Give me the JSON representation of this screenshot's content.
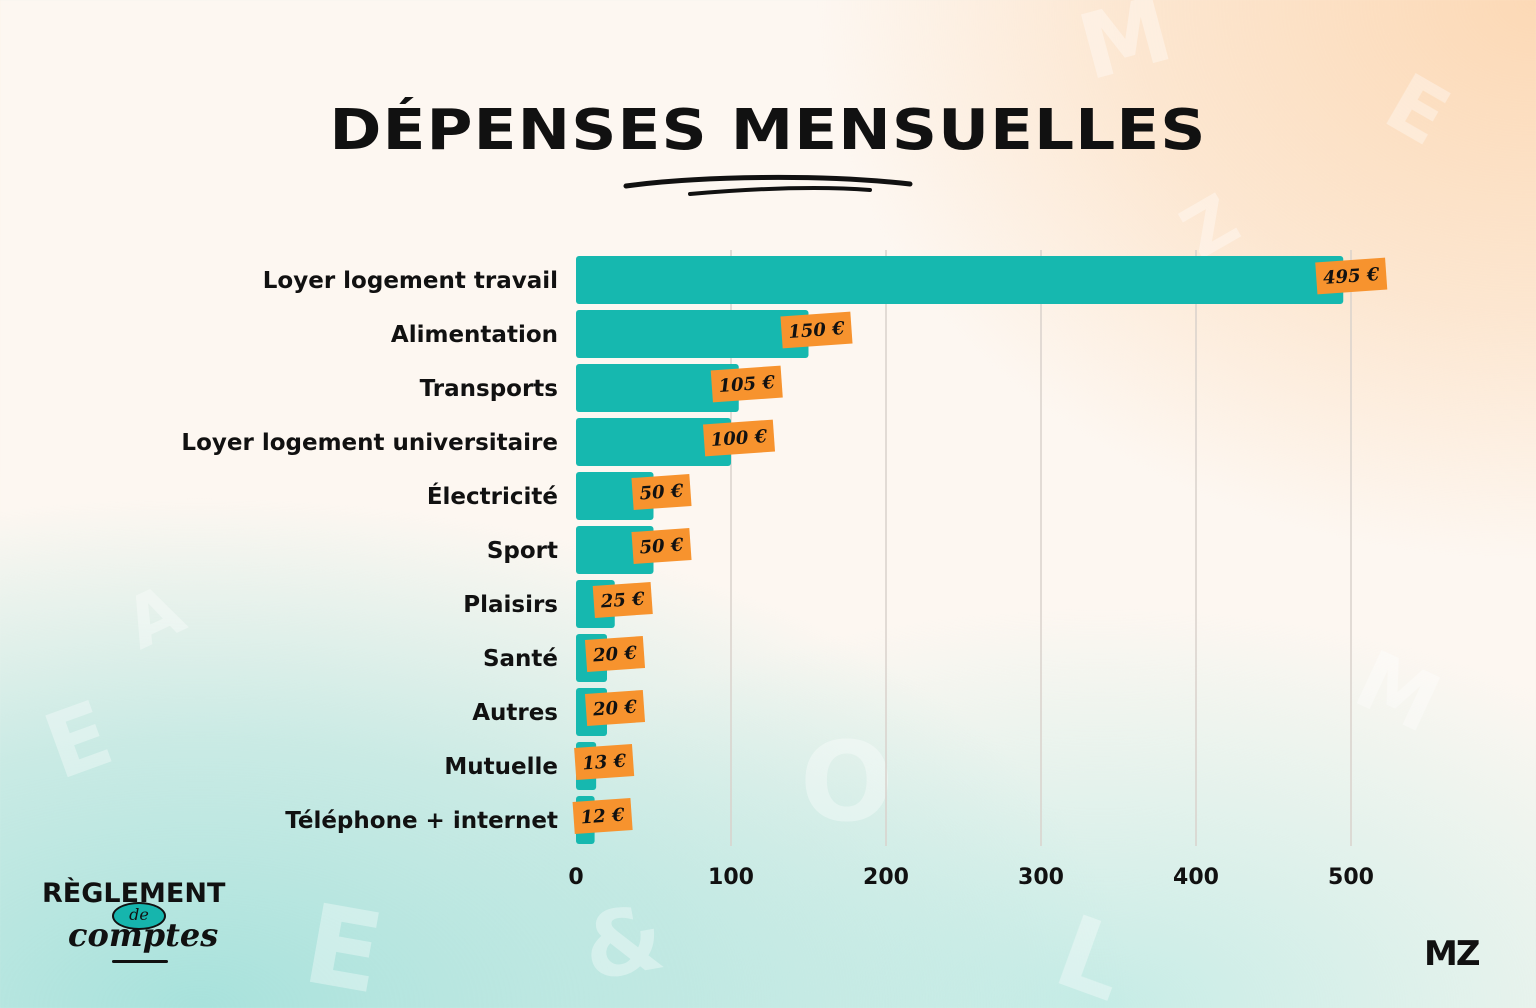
{
  "title": "DÉPENSES MENSUELLES",
  "logo_left": {
    "line1": "RÈGLEMENT",
    "line2": "de",
    "line3": "comptes"
  },
  "logo_right": "MZ",
  "colors": {
    "bar": "#16b8af",
    "tag": "#f7932e",
    "grid": "#d9d2cc",
    "text": "#111111"
  },
  "chart_data": {
    "type": "bar",
    "orientation": "horizontal",
    "categories": [
      "Loyer logement travail",
      "Alimentation",
      "Transports",
      "Loyer logement universitaire",
      "Électricité",
      "Sport",
      "Plaisirs",
      "Santé",
      "Autres",
      "Mutuelle",
      "Téléphone + internet"
    ],
    "values": [
      495,
      150,
      105,
      100,
      50,
      50,
      25,
      20,
      20,
      13,
      12
    ],
    "value_labels": [
      "495 €",
      "150 €",
      "105 €",
      "100 €",
      "50 €",
      "50 €",
      "25 €",
      "20 €",
      "20 €",
      "13 €",
      "12 €"
    ],
    "x_ticks": [
      0,
      100,
      200,
      300,
      400,
      500
    ],
    "xlim": [
      0,
      500
    ],
    "grid": true,
    "legend": "none"
  }
}
